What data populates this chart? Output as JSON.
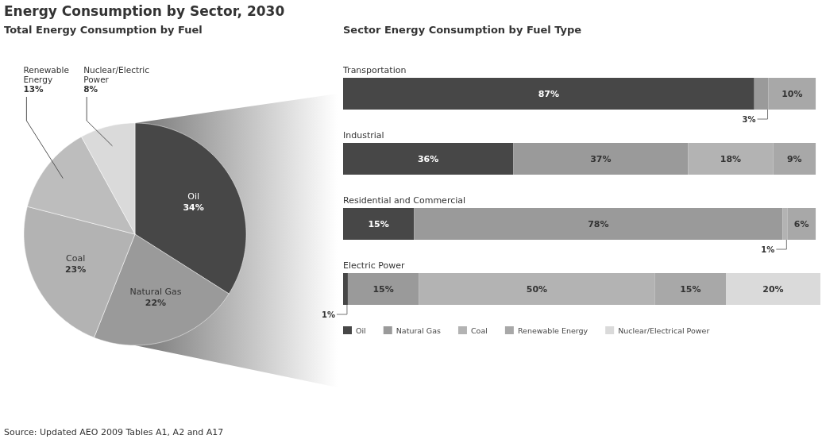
{
  "chart_data": [
    {
      "type": "pie",
      "title": "Energy Consumption by Sector, 2030",
      "subtitle": "Total Energy Consumption by Fuel",
      "categories": [
        "Oil",
        "Natural Gas",
        "Coal",
        "Renewable Energy",
        "Nuclear/Electric Power"
      ],
      "values": [
        34,
        22,
        23,
        13,
        8
      ],
      "colors": [
        "#474747",
        "#9a9a9a",
        "#b3b3b3",
        "#bdbdbd",
        "#dadada"
      ],
      "value_labels": [
        "34%",
        "22%",
        "23%",
        "13%",
        "8%"
      ],
      "annotations": [
        "Source: Updated AEO 2009 Tables A1, A2 and A17"
      ]
    },
    {
      "type": "bar",
      "orientation": "horizontal",
      "title": "Sector Energy Consumption by Fuel Type",
      "categories": [
        "Transportation",
        "Industrial",
        "Residential and Commercial",
        "Electric Power"
      ],
      "stacked": true,
      "xlim": [
        0,
        101
      ],
      "legend": "bottom",
      "series": [
        {
          "name": "Oil",
          "color": "#474747",
          "values": [
            87,
            36,
            15,
            1
          ],
          "value_labels": [
            "87%",
            "36%",
            "15%",
            "1%"
          ]
        },
        {
          "name": "Natural Gas",
          "color": "#9a9a9a",
          "values": [
            3,
            37,
            78,
            15
          ],
          "value_labels": [
            "3%",
            "37%",
            "78%",
            "15%"
          ]
        },
        {
          "name": "Coal",
          "color": "#b3b3b3",
          "values": [
            null,
            18,
            1,
            50
          ],
          "value_labels": [
            null,
            "18%",
            "1%",
            "50%"
          ]
        },
        {
          "name": "Renewable Energy",
          "color": "#a8a8a8",
          "values": [
            10,
            9,
            6,
            15
          ],
          "value_labels": [
            "10%",
            "9%",
            "6%",
            "15%"
          ]
        },
        {
          "name": "Nuclear/Electrical Power",
          "color": "#dadada",
          "values": [
            null,
            null,
            null,
            20
          ],
          "value_labels": [
            null,
            null,
            null,
            "20%"
          ]
        }
      ]
    }
  ]
}
